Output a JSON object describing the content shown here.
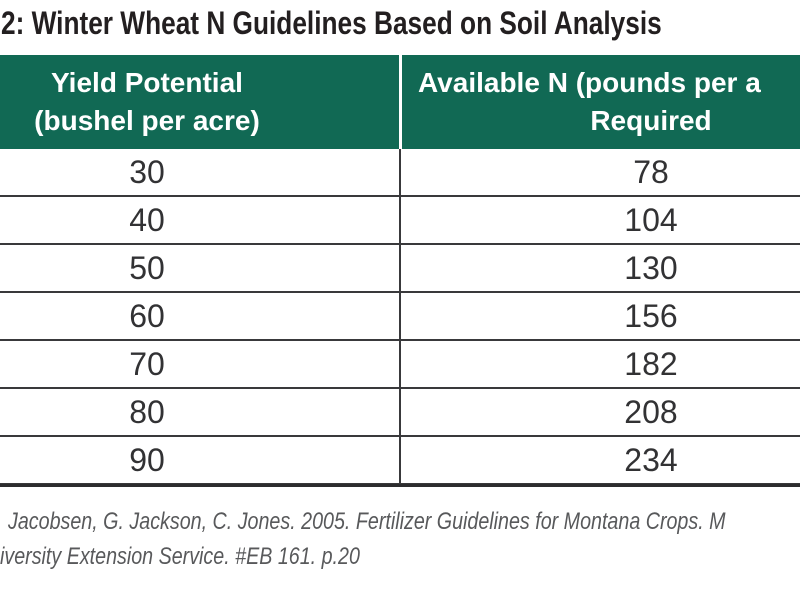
{
  "title": "2: Winter Wheat N Guidelines Based on Soil Analysis",
  "table": {
    "header": {
      "col1_line1": "Yield Potential",
      "col1_line2": "(bushel per acre)",
      "col2_line1": "Available N (pounds per a",
      "col2_line2": "Required"
    },
    "rows": [
      {
        "yield": "30",
        "available_n": "78"
      },
      {
        "yield": "40",
        "available_n": "104"
      },
      {
        "yield": "50",
        "available_n": "130"
      },
      {
        "yield": "60",
        "available_n": "156"
      },
      {
        "yield": "70",
        "available_n": "182"
      },
      {
        "yield": "80",
        "available_n": "208"
      },
      {
        "yield": "90",
        "available_n": "234"
      }
    ]
  },
  "citation": {
    "line1": "Jacobsen, G. Jackson, C. Jones. 2005. Fertilizer Guidelines for Montana Crops. M",
    "line2": "iversity Extension Service. #EB 161. p.20"
  },
  "colors": {
    "header_green": "#116954",
    "grid_line": "#39393b",
    "title_text": "#231f20",
    "body_text": "#323234",
    "citation_text": "#58595b",
    "header_text": "#ffffff"
  }
}
